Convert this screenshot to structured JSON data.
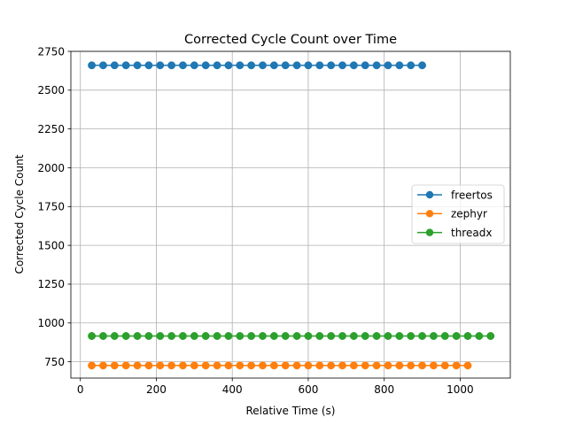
{
  "chart_data": {
    "type": "line",
    "title": "Corrected Cycle Count over Time",
    "xlabel": "Relative Time (s)",
    "ylabel": "Corrected Cycle Count",
    "xlim": [
      -25,
      1132
    ],
    "ylim": [
      645,
      2750
    ],
    "xticks": [
      0,
      200,
      400,
      600,
      800,
      1000
    ],
    "yticks": [
      750,
      1000,
      1250,
      1500,
      1750,
      2000,
      2250,
      2500,
      2750
    ],
    "grid": true,
    "legend_position": "center-right",
    "series": [
      {
        "name": "freertos",
        "color": "#1f77b4",
        "x_start": 30,
        "x_step": 30,
        "x_end": 900,
        "y": 2660
      },
      {
        "name": "zephyr",
        "color": "#ff7f0e",
        "x_start": 30,
        "x_step": 30,
        "x_end": 1020,
        "y": 726
      },
      {
        "name": "threadx",
        "color": "#2ca02c",
        "x_start": 30,
        "x_step": 30,
        "x_end": 1080,
        "y": 916
      }
    ]
  }
}
